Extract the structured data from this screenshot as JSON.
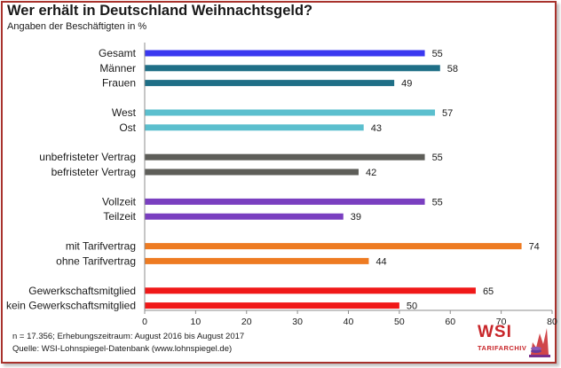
{
  "chart_data": {
    "type": "bar",
    "orientation": "horizontal",
    "title": "Wer erhält in Deutschland Weihnachtsgeld?",
    "subtitle": "Angaben der Beschäftigten in %",
    "groups": [
      {
        "items": [
          {
            "label": "Gesamt",
            "value": 55,
            "color": "#3a38f0"
          },
          {
            "label": "Männer",
            "value": 58,
            "color": "#1f6f87"
          },
          {
            "label": "Frauen",
            "value": 49,
            "color": "#1f6f87"
          }
        ]
      },
      {
        "items": [
          {
            "label": "West",
            "value": 57,
            "color": "#5bbfce"
          },
          {
            "label": "Ost",
            "value": 43,
            "color": "#5bbfce"
          }
        ]
      },
      {
        "items": [
          {
            "label": "unbefristeter Vertrag",
            "value": 55,
            "color": "#5e5e59"
          },
          {
            "label": "befristeter Vertrag",
            "value": 42,
            "color": "#5e5e59"
          }
        ]
      },
      {
        "items": [
          {
            "label": "Vollzeit",
            "value": 55,
            "color": "#7a3fc0"
          },
          {
            "label": "Teilzeit",
            "value": 39,
            "color": "#7a3fc0"
          }
        ]
      },
      {
        "items": [
          {
            "label": "mit Tarifvertrag",
            "value": 74,
            "color": "#ee7b22"
          },
          {
            "label": "ohne Tarifvertrag",
            "value": 44,
            "color": "#ee7b22"
          }
        ]
      },
      {
        "items": [
          {
            "label": "Gewerkschaftsmitglied",
            "value": 65,
            "color": "#f01818"
          },
          {
            "label": "kein Gewerkschaftsmitglied",
            "value": 50,
            "color": "#f01818"
          }
        ]
      }
    ],
    "xlim": [
      0,
      80
    ],
    "xticks": [
      0,
      10,
      20,
      30,
      40,
      50,
      60,
      70,
      80
    ],
    "grid": false
  },
  "footnotes": {
    "sample": "n = 17.356; Erhebungszeitraum: August 2016 bis August 2017",
    "source": "Quelle:  WSI-Lohnspiegel-Datenbank  (www.lohnspiegel.de)"
  },
  "logo": {
    "main": "WSI",
    "sub": "TARIFARCHIV",
    "color": "#c8262a"
  }
}
